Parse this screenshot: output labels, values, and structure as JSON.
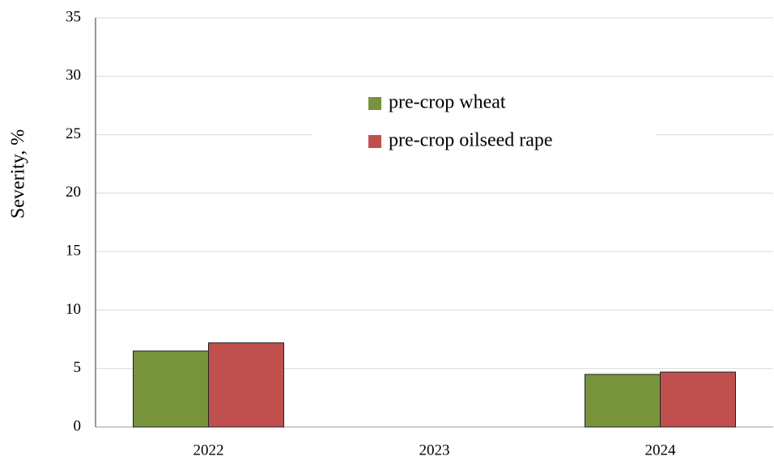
{
  "chart_data": {
    "type": "bar",
    "y_label": "Severity, %",
    "categories": [
      "2022",
      "2023",
      "2024"
    ],
    "series": [
      {
        "name": "pre-crop wheat",
        "color": "#77933c",
        "values": [
          6.5,
          null,
          4.5
        ]
      },
      {
        "name": "pre-crop oilseed rape",
        "color": "#c0504d",
        "values": [
          7.2,
          null,
          4.7
        ]
      }
    ],
    "ylim": [
      0,
      35
    ],
    "yticks": [
      0,
      5,
      10,
      15,
      20,
      25,
      30,
      35
    ],
    "grid": true
  }
}
